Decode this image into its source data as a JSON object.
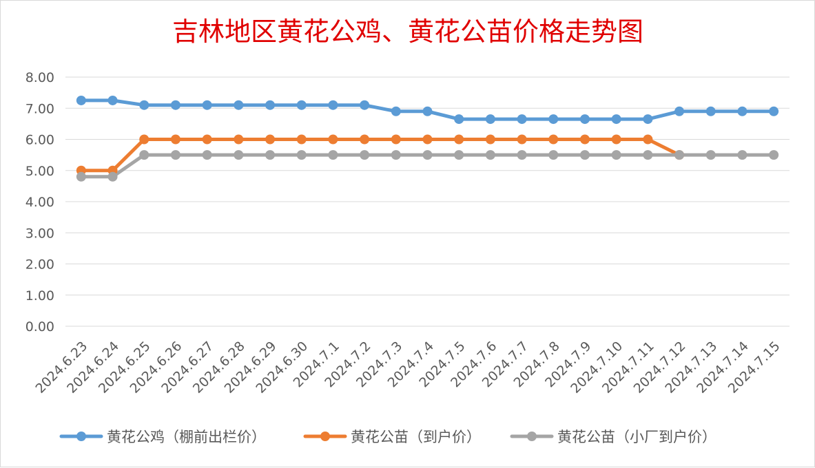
{
  "chart_data": {
    "type": "line",
    "title": "吉林地区黄花公鸡、黄花公苗价格走势图",
    "xlabel": "",
    "ylabel": "",
    "ylim": [
      0,
      8
    ],
    "yticks": [
      "0.00",
      "1.00",
      "2.00",
      "3.00",
      "4.00",
      "5.00",
      "6.00",
      "7.00",
      "8.00"
    ],
    "grid": true,
    "legend_position": "bottom",
    "categories": [
      "2024.6.23",
      "2024.6.24",
      "2024.6.25",
      "2024.6.26",
      "2024.6.27",
      "2024.6.28",
      "2024.6.29",
      "2024.6.30",
      "2024.7.1",
      "2024.7.2",
      "2024.7.3",
      "2024.7.4",
      "2024.7.5",
      "2024.7.6",
      "2024.7.7",
      "2024.7.8",
      "2024.7.9",
      "2024.7.10",
      "2024.7.11",
      "2024.7.12",
      "2024.7.13",
      "2024.7.14",
      "2024.7.15"
    ],
    "series": [
      {
        "name": "黄花公鸡（棚前出栏价）",
        "color": "#5b9bd5",
        "values": [
          7.25,
          7.25,
          7.1,
          7.1,
          7.1,
          7.1,
          7.1,
          7.1,
          7.1,
          7.1,
          6.9,
          6.9,
          6.65,
          6.65,
          6.65,
          6.65,
          6.65,
          6.65,
          6.65,
          6.9,
          6.9,
          6.9,
          6.9
        ]
      },
      {
        "name": "黄花公苗（到户价）",
        "color": "#ed7d31",
        "values": [
          5.0,
          5.0,
          6.0,
          6.0,
          6.0,
          6.0,
          6.0,
          6.0,
          6.0,
          6.0,
          6.0,
          6.0,
          6.0,
          6.0,
          6.0,
          6.0,
          6.0,
          6.0,
          6.0,
          5.5,
          null,
          null,
          null
        ]
      },
      {
        "name": "黄花公苗（小厂到户价）",
        "color": "#a5a5a5",
        "values": [
          4.8,
          4.8,
          5.5,
          5.5,
          5.5,
          5.5,
          5.5,
          5.5,
          5.5,
          5.5,
          5.5,
          5.5,
          5.5,
          5.5,
          5.5,
          5.5,
          5.5,
          5.5,
          5.5,
          5.5,
          5.5,
          5.5,
          5.5
        ]
      }
    ]
  }
}
